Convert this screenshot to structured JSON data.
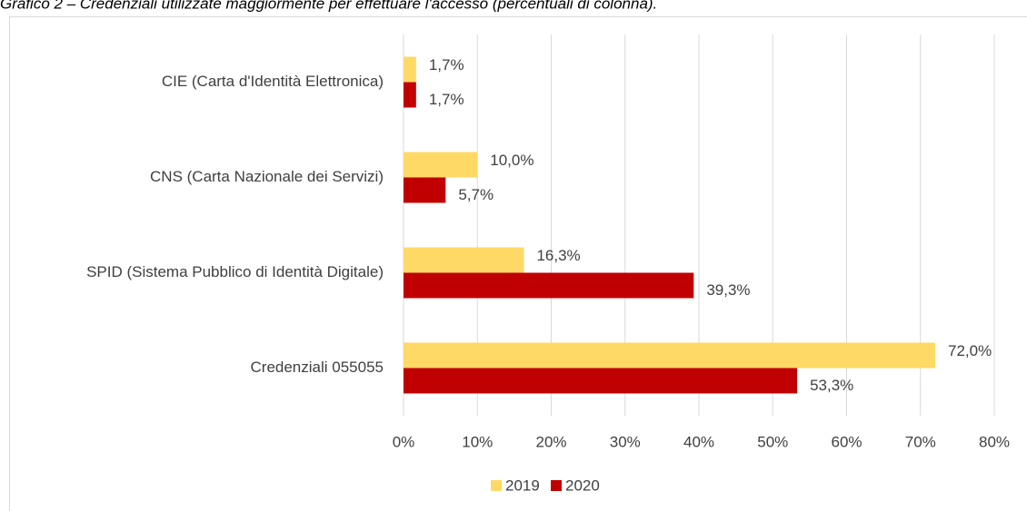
{
  "chart_data": {
    "type": "hbar",
    "title": "Grafico 2 – Credenziali utilizzate maggiormente per effettuare l'accesso (percentuali di colonna).",
    "categories": [
      "CIE (Carta d'Identità Elettronica)",
      "CNS (Carta Nazionale dei Servizi)",
      "SPID (Sistema Pubblico di Identità Digitale)",
      "Credenziali 055055"
    ],
    "series": [
      {
        "name": "2019",
        "color": "#ffd966",
        "values": [
          1.7,
          10.0,
          16.3,
          72.0
        ],
        "value_labels": [
          "1,7%",
          "10,0%",
          "16,3%",
          "72,0%"
        ]
      },
      {
        "name": "2020",
        "color": "#c00000",
        "values": [
          1.7,
          5.7,
          39.3,
          53.3
        ],
        "value_labels": [
          "1,7%",
          "5,7%",
          "39,3%",
          "53,3%"
        ]
      }
    ],
    "xlim": [
      0,
      80
    ],
    "xticks": [
      {
        "value": 0,
        "label": "0%"
      },
      {
        "value": 10,
        "label": "10%"
      },
      {
        "value": 20,
        "label": "20%"
      },
      {
        "value": 30,
        "label": "30%"
      },
      {
        "value": 40,
        "label": "40%"
      },
      {
        "value": 50,
        "label": "50%"
      },
      {
        "value": 60,
        "label": "60%"
      },
      {
        "value": 70,
        "label": "70%"
      },
      {
        "value": 80,
        "label": "80%"
      }
    ],
    "grid": true,
    "legend": "bottom"
  }
}
